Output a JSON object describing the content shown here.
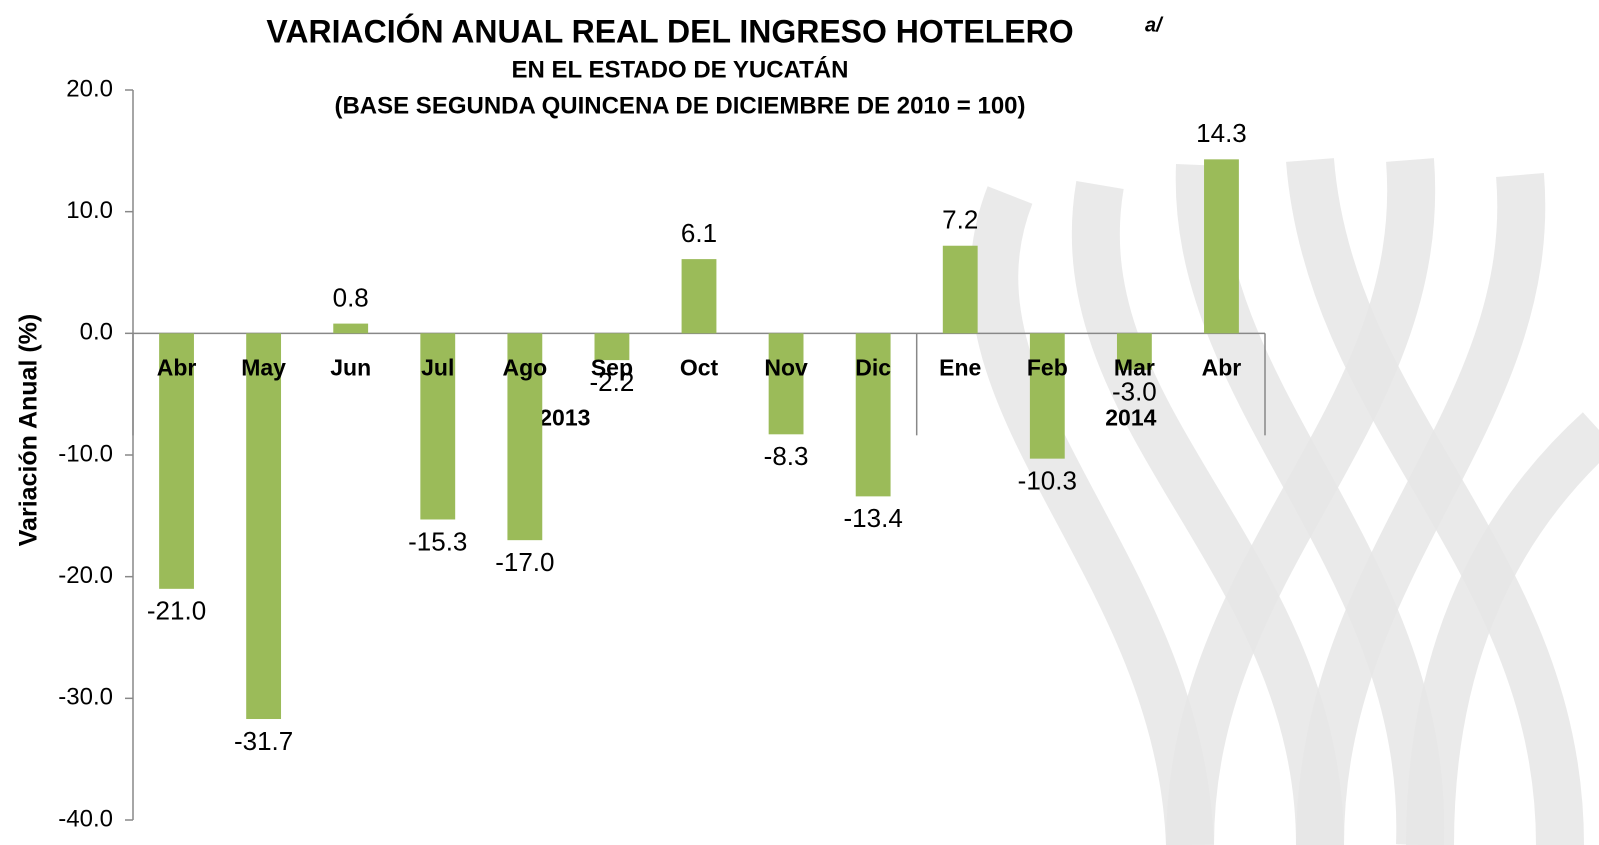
{
  "chart_data": {
    "type": "bar",
    "title": "VARIACIÓN ANUAL REAL DEL INGRESO HOTELERO",
    "title_note": "a/",
    "subtitle": [
      "EN EL ESTADO DE YUCATÁN",
      "(BASE SEGUNDA QUINCENA DE DICIEMBRE DE 2010 = 100)"
    ],
    "y_label": "Variación  Anual  (%)",
    "categories": [
      "Abr",
      "May",
      "Jun",
      "Jul",
      "Ago",
      "Sep",
      "Oct",
      "Nov",
      "Dic",
      "Ene",
      "Feb",
      "Mar",
      "Abr"
    ],
    "groups": [
      {
        "label": "2013",
        "size": 9
      },
      {
        "label": "2014",
        "size": 4
      }
    ],
    "values": [
      -21.0,
      -31.7,
      0.8,
      -15.3,
      -17.0,
      -2.2,
      6.1,
      -8.3,
      -13.4,
      7.2,
      -10.3,
      -3.0,
      14.3
    ],
    "value_labels": [
      "-21.0",
      "-31.7",
      "0.8",
      "-15.3",
      "-17.0",
      "-2.2",
      "6.1",
      "-8.3",
      "-13.4",
      "7.2",
      "-10.3",
      "-3.0",
      "14.3"
    ],
    "color": "#9bbb59",
    "ylim": [
      -40,
      20
    ],
    "yticks": [
      {
        "value": -40,
        "label": "-40.0"
      },
      {
        "value": -30,
        "label": "-30.0"
      },
      {
        "value": -20,
        "label": "-20.0"
      },
      {
        "value": -10,
        "label": "-10.0"
      },
      {
        "value": 0,
        "label": "0.0"
      },
      {
        "value": 10,
        "label": "10.0"
      },
      {
        "value": 20,
        "label": "20.0"
      }
    ],
    "grid": false
  }
}
